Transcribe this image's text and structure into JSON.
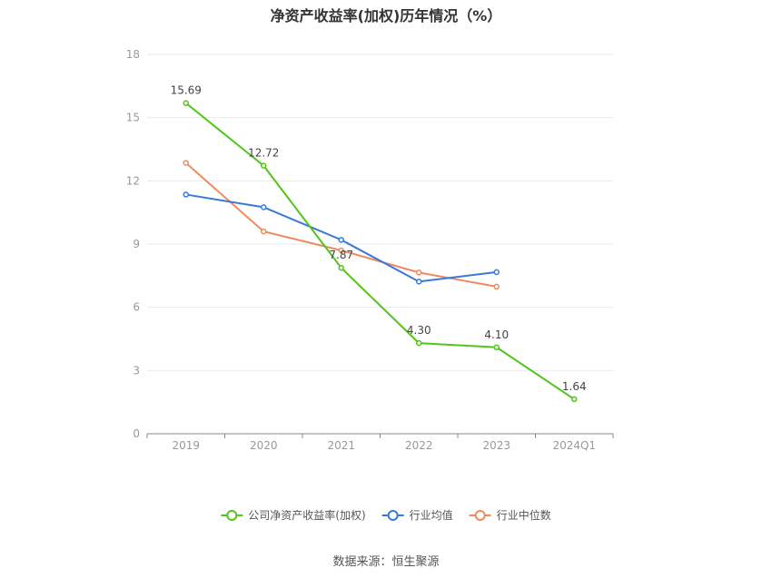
{
  "title": "净资产收益率(加权)历年情况（%）",
  "source": "数据来源：恒生聚源",
  "chart_data": {
    "type": "line",
    "categories": [
      "2019",
      "2020",
      "2021",
      "2022",
      "2023",
      "2024Q1"
    ],
    "ylim": [
      0,
      18
    ],
    "yticks": [
      0,
      3,
      6,
      9,
      12,
      15,
      18
    ],
    "grid": true,
    "legend_position": "bottom",
    "series": [
      {
        "name": "公司净资产收益率(加权)",
        "color": "#52c41a",
        "values": [
          15.69,
          12.72,
          7.87,
          4.3,
          4.1,
          1.64
        ],
        "labels": [
          "15.69",
          "12.72",
          "7.87",
          "4.30",
          "4.10",
          "1.64"
        ]
      },
      {
        "name": "行业均值",
        "color": "#3a78d8",
        "values": [
          11.35,
          10.75,
          9.2,
          7.22,
          7.67,
          null
        ]
      },
      {
        "name": "行业中位数",
        "color": "#f08a5d",
        "values": [
          12.85,
          9.6,
          8.7,
          7.65,
          6.98,
          null
        ]
      }
    ]
  }
}
